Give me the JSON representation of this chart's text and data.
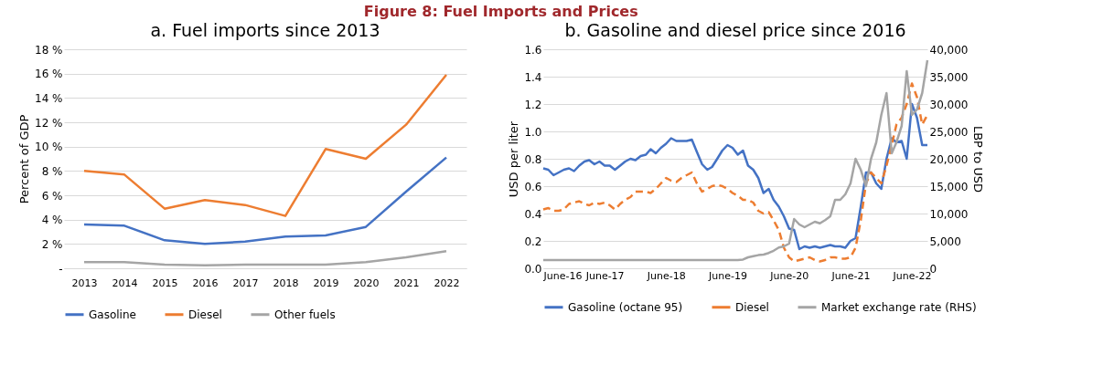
{
  "chart_data": [
    {
      "type": "line",
      "title": "a. Fuel imports since 2013",
      "ylabel": "Percent of GDP",
      "annotations": [
        "Figure 8: Fuel Imports and Prices"
      ],
      "categories": [
        "2013",
        "2014",
        "2015",
        "2016",
        "2017",
        "2018",
        "2019",
        "2020",
        "2021",
        "2022"
      ],
      "series": [
        {
          "name": "Gasoline",
          "color": "#4472c4",
          "values": [
            3.6,
            3.5,
            2.3,
            2.0,
            2.2,
            2.6,
            2.7,
            3.4,
            6.3,
            9.1
          ]
        },
        {
          "name": "Diesel",
          "color": "#ed7d31",
          "values": [
            8.0,
            7.7,
            4.9,
            5.6,
            5.2,
            4.3,
            9.8,
            9.0,
            11.8,
            15.9
          ]
        },
        {
          "name": "Other fuels",
          "color": "#a5a5a5",
          "values": [
            0.5,
            0.5,
            0.3,
            0.25,
            0.3,
            0.3,
            0.3,
            0.5,
            0.9,
            1.4
          ]
        }
      ],
      "ylim": [
        0,
        18
      ],
      "yticks": [
        {
          "value": 0,
          "label": "-"
        },
        {
          "value": 2,
          "label": "2 %"
        },
        {
          "value": 4,
          "label": "4 %"
        },
        {
          "value": 6,
          "label": "6 %"
        },
        {
          "value": 8,
          "label": "8 %"
        },
        {
          "value": 10,
          "label": "10 %"
        },
        {
          "value": 12,
          "label": "12 %"
        },
        {
          "value": 14,
          "label": "14 %"
        },
        {
          "value": 16,
          "label": "16 %"
        },
        {
          "value": 18,
          "label": "18 %"
        }
      ],
      "grid": "y",
      "legend": "bottom",
      "line_style": "solid"
    },
    {
      "type": "line",
      "title": "b. Gasoline and diesel price since 2016",
      "ylabel": "USD per liter",
      "y2label": "LBP to USD",
      "x": [
        "2016-06",
        "2016-07",
        "2016-08",
        "2016-09",
        "2016-10",
        "2016-11",
        "2016-12",
        "2017-01",
        "2017-02",
        "2017-03",
        "2017-04",
        "2017-05",
        "2017-06",
        "2017-07",
        "2017-08",
        "2017-09",
        "2017-10",
        "2017-11",
        "2017-12",
        "2018-01",
        "2018-02",
        "2018-03",
        "2018-04",
        "2018-05",
        "2018-06",
        "2018-07",
        "2018-08",
        "2018-09",
        "2018-10",
        "2018-11",
        "2018-12",
        "2019-01",
        "2019-02",
        "2019-03",
        "2019-04",
        "2019-05",
        "2019-06",
        "2019-07",
        "2019-08",
        "2019-09",
        "2019-10",
        "2019-11",
        "2019-12",
        "2020-01",
        "2020-02",
        "2020-03",
        "2020-04",
        "2020-05",
        "2020-06",
        "2020-07",
        "2020-08",
        "2020-09",
        "2020-10",
        "2020-11",
        "2020-12",
        "2021-01",
        "2021-02",
        "2021-03",
        "2021-04",
        "2021-05",
        "2021-06",
        "2021-07",
        "2021-08",
        "2021-09",
        "2021-10",
        "2021-11",
        "2021-12",
        "2022-01",
        "2022-02",
        "2022-03",
        "2022-04",
        "2022-05",
        "2022-06",
        "2022-07",
        "2022-08",
        "2022-09"
      ],
      "series": [
        {
          "name": "Gasoline (octane 95)",
          "color": "#4472c4",
          "line_style": "solid",
          "values": [
            0.73,
            0.72,
            0.68,
            0.7,
            0.72,
            0.73,
            0.71,
            0.75,
            0.78,
            0.79,
            0.76,
            0.78,
            0.75,
            0.75,
            0.72,
            0.75,
            0.78,
            0.8,
            0.79,
            0.82,
            0.83,
            0.87,
            0.84,
            0.88,
            0.91,
            0.95,
            0.93,
            0.93,
            0.93,
            0.94,
            0.85,
            0.76,
            0.72,
            0.74,
            0.8,
            0.86,
            0.9,
            0.88,
            0.83,
            0.86,
            0.75,
            0.72,
            0.66,
            0.55,
            0.58,
            0.5,
            0.45,
            0.38,
            0.29,
            0.28,
            0.14,
            0.16,
            0.15,
            0.16,
            0.15,
            0.16,
            0.17,
            0.16,
            0.16,
            0.15,
            0.2,
            0.22,
            0.45,
            0.7,
            0.7,
            0.62,
            0.58,
            0.8,
            0.95,
            0.92,
            0.93,
            0.8,
            1.2,
            1.1,
            0.9,
            0.9
          ]
        },
        {
          "name": "Diesel",
          "color": "#ed7d31",
          "line_style": "dashed",
          "values": [
            0.43,
            0.44,
            0.42,
            0.42,
            0.43,
            0.47,
            0.48,
            0.49,
            0.47,
            0.46,
            0.48,
            0.47,
            0.48,
            0.46,
            0.43,
            0.47,
            0.5,
            0.52,
            0.56,
            0.56,
            0.56,
            0.55,
            0.58,
            0.62,
            0.66,
            0.64,
            0.63,
            0.66,
            0.68,
            0.7,
            0.62,
            0.56,
            0.58,
            0.6,
            0.61,
            0.6,
            0.58,
            0.55,
            0.53,
            0.5,
            0.5,
            0.48,
            0.42,
            0.4,
            0.41,
            0.35,
            0.28,
            0.15,
            0.08,
            0.05,
            0.06,
            0.07,
            0.08,
            0.06,
            0.05,
            0.06,
            0.08,
            0.08,
            0.07,
            0.07,
            0.08,
            0.15,
            0.35,
            0.62,
            0.7,
            0.66,
            0.62,
            0.75,
            0.9,
            1.05,
            1.1,
            1.2,
            1.35,
            1.25,
            1.05,
            1.12
          ]
        },
        {
          "name": "Market exchange rate (RHS)",
          "color": "#a5a5a5",
          "line_style": "solid",
          "axis": "y2",
          "values": [
            1500,
            1500,
            1500,
            1500,
            1500,
            1500,
            1500,
            1500,
            1500,
            1500,
            1500,
            1500,
            1500,
            1500,
            1500,
            1500,
            1500,
            1500,
            1500,
            1500,
            1500,
            1500,
            1500,
            1500,
            1500,
            1500,
            1500,
            1500,
            1500,
            1500,
            1500,
            1500,
            1500,
            1500,
            1500,
            1500,
            1500,
            1500,
            1500,
            1600,
            2000,
            2200,
            2400,
            2500,
            2800,
            3200,
            3800,
            4000,
            4500,
            9000,
            8000,
            7500,
            8000,
            8500,
            8200,
            8800,
            9500,
            12500,
            12500,
            13500,
            15500,
            20000,
            18000,
            15000,
            20000,
            23000,
            28000,
            32000,
            21000,
            23000,
            26000,
            36000,
            28000,
            29000,
            32000,
            38000
          ]
        }
      ],
      "xlim": [
        "2016-06",
        "2022-09"
      ],
      "xticks": [
        {
          "value": "2016-06",
          "label": "June-16"
        },
        {
          "value": "2017-06",
          "label": "June-17"
        },
        {
          "value": "2018-06",
          "label": "June-18"
        },
        {
          "value": "2019-06",
          "label": "June-19"
        },
        {
          "value": "2020-06",
          "label": "June-20"
        },
        {
          "value": "2021-06",
          "label": "June-21"
        },
        {
          "value": "2022-06",
          "label": "June-22"
        }
      ],
      "ylim": [
        0,
        1.6
      ],
      "yticks": [
        {
          "value": 0,
          "label": "0.0"
        },
        {
          "value": 0.2,
          "label": "0.2"
        },
        {
          "value": 0.4,
          "label": "0.4"
        },
        {
          "value": 0.6,
          "label": "0.6"
        },
        {
          "value": 0.8,
          "label": "0.8"
        },
        {
          "value": 1.0,
          "label": "1.0"
        },
        {
          "value": 1.2,
          "label": "1.2"
        },
        {
          "value": 1.4,
          "label": "1.4"
        },
        {
          "value": 1.6,
          "label": "1.6"
        }
      ],
      "y2lim": [
        0,
        40000
      ],
      "y2ticks": [
        0,
        {
          "value": 5000,
          "label": "5,000"
        },
        {
          "value": 10000,
          "label": "10,000"
        },
        {
          "value": 15000,
          "label": "15,000"
        },
        {
          "value": 20000,
          "label": "20,000"
        },
        {
          "value": 25000,
          "label": "25,000"
        },
        {
          "value": 30000,
          "label": "30,000"
        },
        {
          "value": 35000,
          "label": "35,000"
        },
        {
          "value": 40000,
          "label": "40,000"
        }
      ],
      "grid": "y",
      "legend": "bottom"
    }
  ]
}
